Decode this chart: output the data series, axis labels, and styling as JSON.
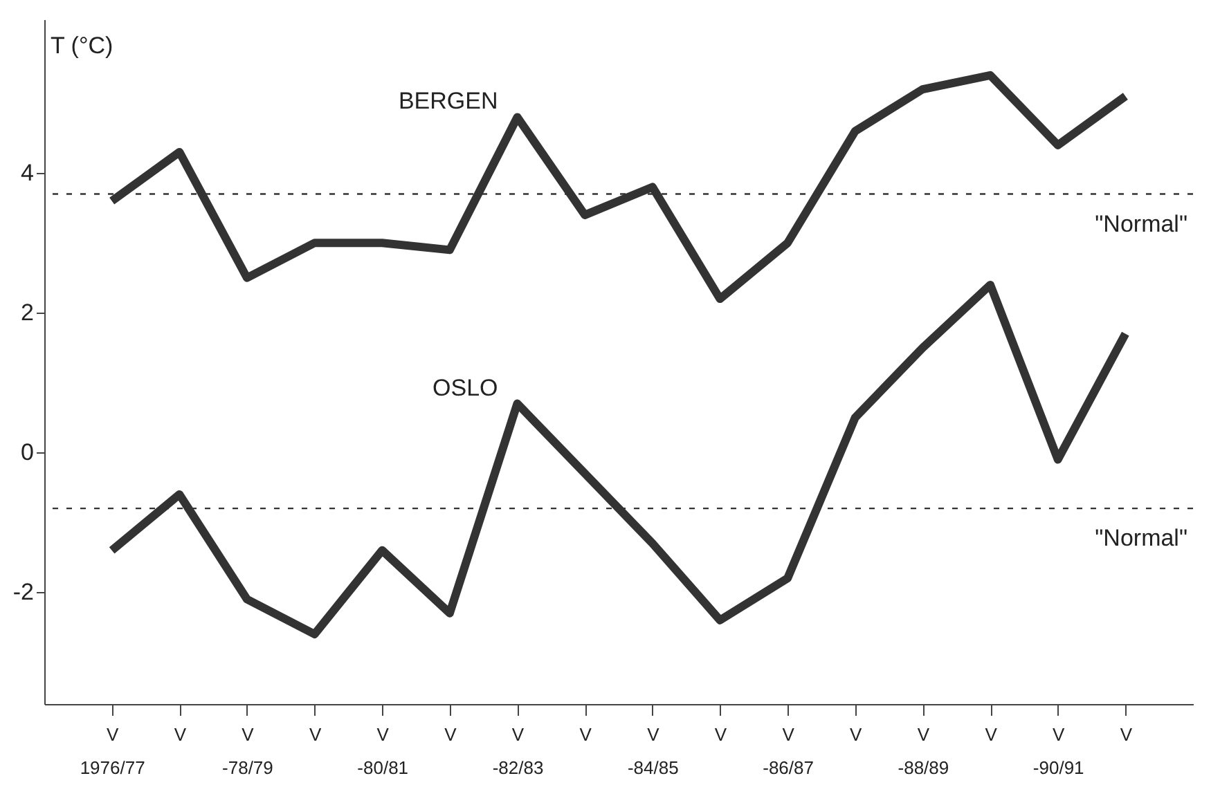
{
  "chart_data": {
    "type": "line",
    "ylabel": "T (°C)",
    "categories": [
      "V\n1976/77",
      "V",
      "V\n-78/79",
      "V",
      "V\n-80/81",
      "V",
      "V\n-82/83",
      "V",
      "V\n-84/85",
      "V",
      "V\n-86/87",
      "V",
      "V\n-88/89",
      "V",
      "V\n-90/91",
      "V"
    ],
    "series": [
      {
        "name": "BERGEN",
        "color": "#333333",
        "values": [
          3.6,
          4.3,
          2.5,
          3.0,
          3.0,
          2.9,
          4.8,
          3.4,
          3.8,
          2.2,
          3.0,
          4.6,
          5.2,
          5.4,
          4.4,
          5.1
        ]
      },
      {
        "name": "OSLO",
        "color": "#333333",
        "values": [
          -1.4,
          -0.6,
          -2.1,
          -2.6,
          -1.4,
          -2.3,
          0.7,
          -0.3,
          -1.3,
          -2.4,
          -1.8,
          0.5,
          1.5,
          2.4,
          -0.1,
          1.7
        ]
      }
    ],
    "ylim": [
      -3.6,
      6.2
    ],
    "yticks": [
      -2,
      0,
      2,
      4
    ],
    "ref_lines": [
      {
        "axis": "y",
        "value": 3.7,
        "label": "\"Normal\"",
        "line_style": "dashed",
        "color": "#333333"
      },
      {
        "axis": "y",
        "value": -0.8,
        "label": "\"Normal\"",
        "line_style": "dashed",
        "color": "#333333"
      }
    ],
    "grid": false,
    "legend": false,
    "marker": "none",
    "line_style": "solid"
  }
}
